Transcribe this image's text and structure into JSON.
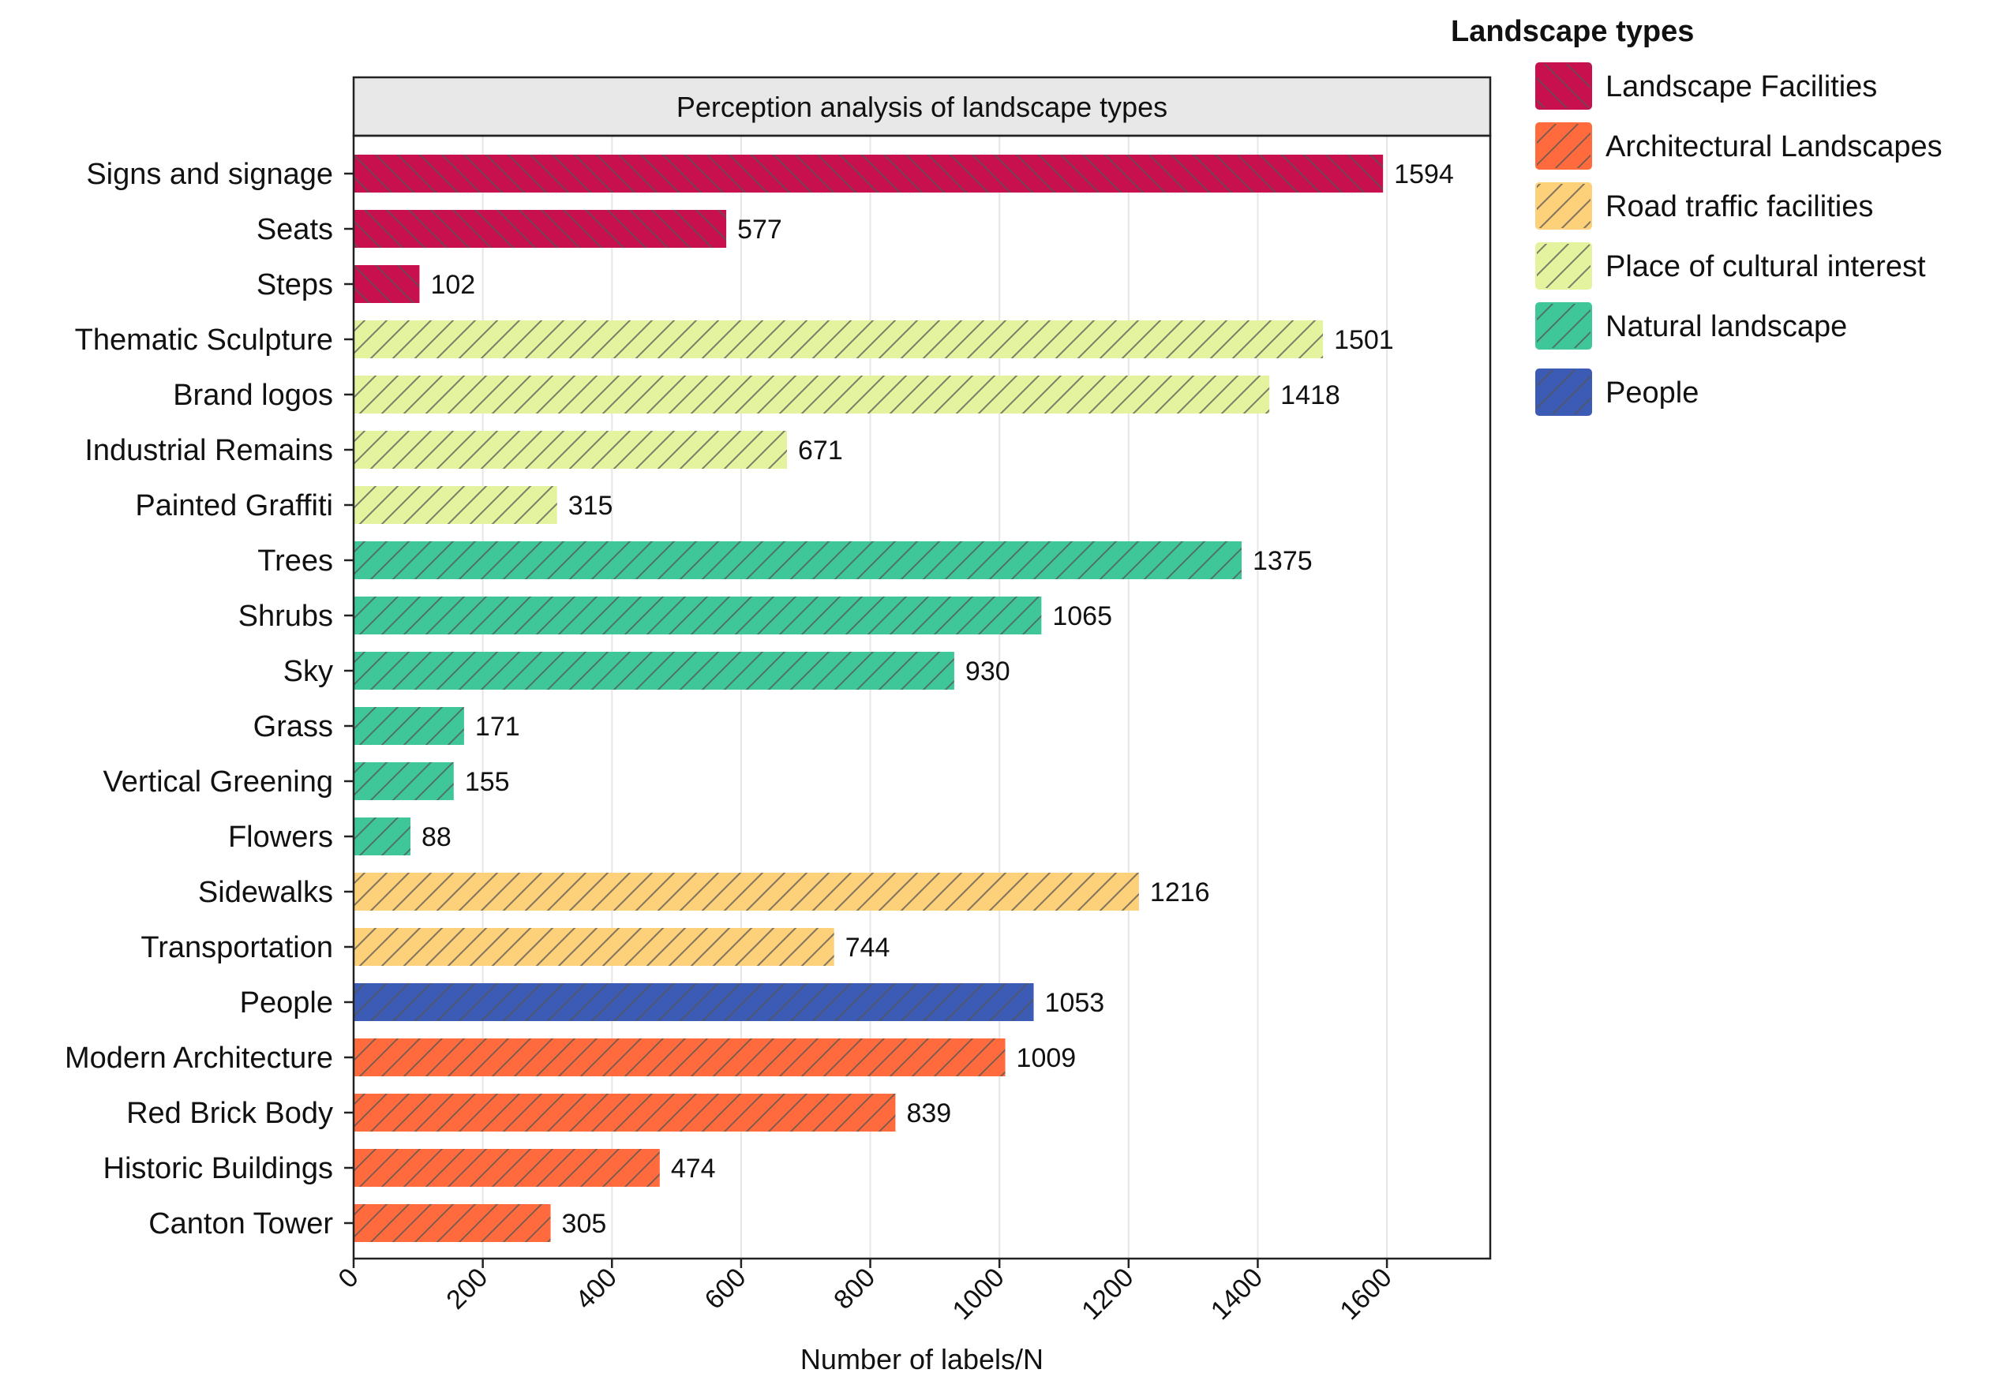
{
  "chart_data": {
    "type": "bar",
    "orientation": "horizontal",
    "title": "Perception analysis of landscape types",
    "xlabel": "Number of labels/N",
    "ylabel": "",
    "xlim": [
      0,
      1760
    ],
    "xticks": [
      0,
      200,
      400,
      600,
      800,
      1000,
      1200,
      1400,
      1600
    ],
    "grid": true,
    "legend_title": "Landscape types",
    "legend_position": "top-right outside",
    "groups": [
      {
        "name": "Landscape Facilities",
        "color": "#C8104F"
      },
      {
        "name": "Architectural Landscapes",
        "color": "#FF6B3D"
      },
      {
        "name": "Road traffic facilities",
        "color": "#FDD07A"
      },
      {
        "name": "Place of cultural interest",
        "color": "#E4F39E"
      },
      {
        "name": "Natural landscape",
        "color": "#3FC79A"
      },
      {
        "name": "People",
        "color": "#3B5BB5"
      }
    ],
    "categories": [
      "Signs and signage",
      "Seats",
      "Steps",
      "Thematic Sculpture",
      "Brand logos",
      "Industrial Remains",
      "Painted Graffiti",
      "Trees",
      "Shrubs",
      "Sky",
      "Grass",
      "Vertical Greening",
      "Flowers",
      "Sidewalks",
      "Transportation",
      "People",
      "Modern Architecture",
      "Red Brick Body",
      "Historic Buildings",
      "Canton Tower"
    ],
    "values": [
      1594,
      577,
      102,
      1501,
      1418,
      671,
      315,
      1375,
      1065,
      930,
      171,
      155,
      88,
      1216,
      744,
      1053,
      1009,
      839,
      474,
      305
    ],
    "category_group": [
      "Landscape Facilities",
      "Landscape Facilities",
      "Landscape Facilities",
      "Place of cultural interest",
      "Place of cultural interest",
      "Place of cultural interest",
      "Place of cultural interest",
      "Natural landscape",
      "Natural landscape",
      "Natural landscape",
      "Natural landscape",
      "Natural landscape",
      "Natural landscape",
      "Road traffic facilities",
      "Road traffic facilities",
      "People",
      "Architectural Landscapes",
      "Architectural Landscapes",
      "Architectural Landscapes",
      "Architectural Landscapes"
    ],
    "hatch_direction": {
      "Landscape Facilities": "back",
      "Architectural Landscapes": "forward",
      "Road traffic facilities": "forward",
      "Place of cultural interest": "forward",
      "Natural landscape": "forward",
      "People": "forward"
    }
  }
}
